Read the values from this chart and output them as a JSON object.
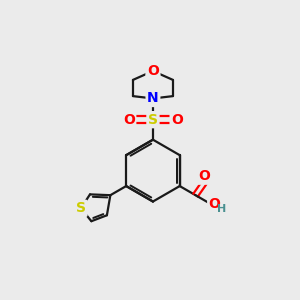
{
  "background_color": "#ebebeb",
  "bond_color": "#1a1a1a",
  "bond_width": 1.6,
  "atom_colors": {
    "O": "#ff0000",
    "N": "#0000ff",
    "S_sulfonyl": "#cccc00",
    "S_thio": "#cccc00",
    "H": "#4a9090"
  },
  "font_size_atoms": 10,
  "font_size_H": 8,
  "scale": 1.0
}
